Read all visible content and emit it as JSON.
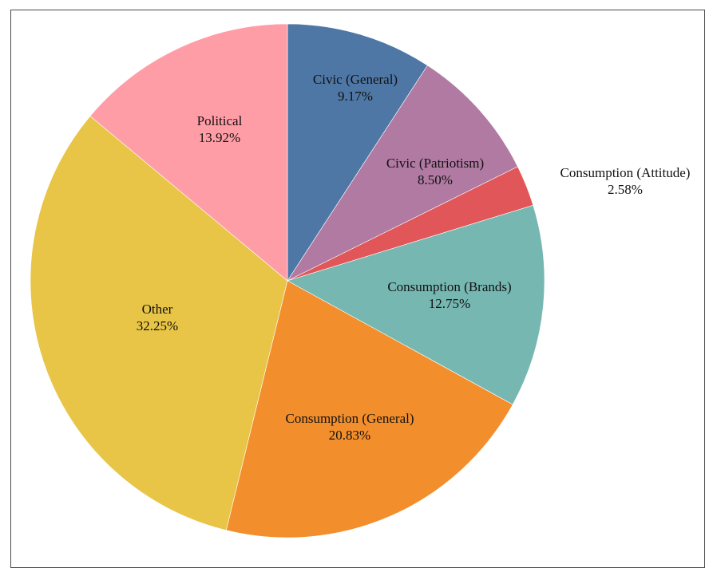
{
  "chart_data": {
    "type": "pie",
    "title": "",
    "start_angle_deg": 0,
    "direction": "clockwise",
    "slices": [
      {
        "label": "Civic (General)",
        "value": 9.17,
        "display": "9.17%",
        "color": "#4e77a5"
      },
      {
        "label": "Civic (Patriotism)",
        "value": 8.5,
        "display": "8.50%",
        "color": "#b07aa2"
      },
      {
        "label": "Consumption (Attitude)",
        "value": 2.58,
        "display": "2.58%",
        "color": "#e15659"
      },
      {
        "label": "Consumption (Brands)",
        "value": 12.75,
        "display": "12.75%",
        "color": "#76b7b2"
      },
      {
        "label": "Consumption (General)",
        "value": 20.83,
        "display": "20.83%",
        "color": "#f28e2c"
      },
      {
        "label": "Other",
        "value": 32.25,
        "display": "32.25%",
        "color": "#e8c547"
      },
      {
        "label": "Political",
        "value": 13.92,
        "display": "13.92%",
        "color": "#ff9da7"
      }
    ]
  }
}
